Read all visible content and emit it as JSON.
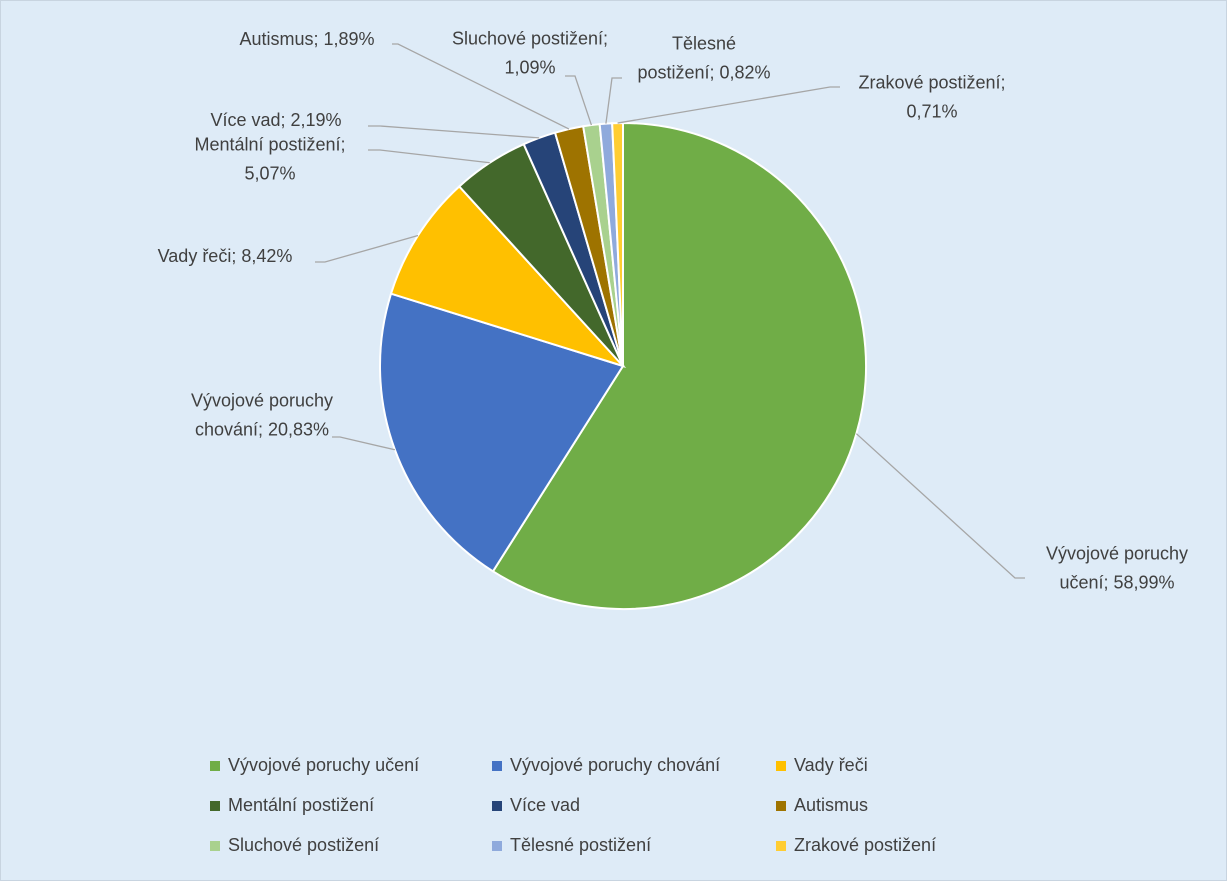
{
  "chart_data": {
    "type": "pie",
    "categories": [
      "Vývojové poruchy učení",
      "Vývojové poruchy chování",
      "Vady řeči",
      "Mentální postižení",
      "Více vad",
      "Autismus",
      "Sluchové postižení",
      "Tělesné postižení",
      "Zrakové postižení"
    ],
    "values": [
      58.99,
      20.83,
      8.42,
      5.07,
      2.19,
      1.89,
      1.09,
      0.82,
      0.71
    ],
    "value_labels": [
      "Vývojové poruchy učení; 58,99%",
      "Vývojové poruchy chování; 20,83%",
      "Vady řeči; 8,42%",
      "Mentální postižení; 5,07%",
      "Více vad; 2,19%",
      "Autismus; 1,89%",
      "Sluchové postižení; 1,09%",
      "Tělesné postižení; 0,82%",
      "Zrakové postižení; 0,71%"
    ],
    "colors": [
      "#70ad47",
      "#4472c4",
      "#ffc000",
      "#43682b",
      "#264478",
      "#9e7300",
      "#a9d18e",
      "#8faadc",
      "#ffcd33"
    ],
    "legend": "bottom"
  }
}
